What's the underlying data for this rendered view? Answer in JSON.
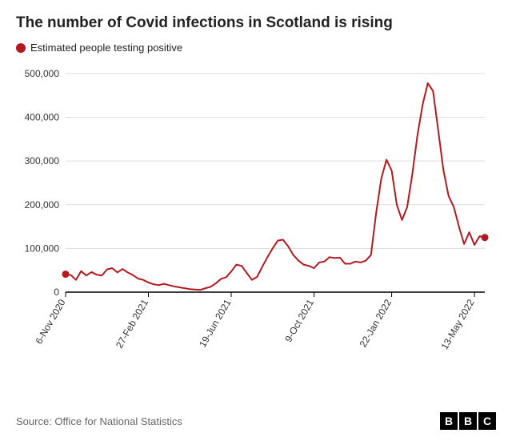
{
  "title": "The number of Covid infections in Scotland is rising",
  "title_fontsize": 19,
  "legend": {
    "label": "Estimated people testing positive",
    "dot_color": "#b3191e",
    "fontsize": 13
  },
  "chart": {
    "type": "line",
    "background_color": "#ffffff",
    "line_color": "#b3191e",
    "line_width": 2,
    "axis_color": "#000000",
    "grid_color": "#dddddd",
    "grid": true,
    "tick_label_color": "#333333",
    "tick_fontsize": 12,
    "endpoint_marker_radius": 4.5,
    "endpoint_marker_color": "#b3191e",
    "ylim": [
      0,
      520000
    ],
    "ytick_values": [
      0,
      100000,
      200000,
      300000,
      400000,
      500000
    ],
    "ytick_labels": [
      "0",
      "100,000",
      "200,000",
      "300,000",
      "400,000",
      "500,000"
    ],
    "xtick_labels": [
      "6-Nov 2020",
      "27-Feb 2021",
      "19-Jun 2021",
      "9-Oct 2021",
      "22-Jan 2022",
      "13-May 2022"
    ],
    "xtick_indices": [
      0,
      16,
      32,
      48,
      63,
      79
    ],
    "values": [
      41000,
      39000,
      28000,
      48000,
      38000,
      46000,
      40000,
      38000,
      52000,
      55000,
      45000,
      53000,
      45000,
      39000,
      31000,
      28000,
      22000,
      18000,
      16000,
      19000,
      16000,
      13000,
      11000,
      9000,
      7000,
      6000,
      5000,
      9000,
      12000,
      20000,
      30000,
      34000,
      47000,
      63000,
      60000,
      44000,
      28000,
      35000,
      58000,
      80000,
      100000,
      118000,
      120000,
      105000,
      85000,
      72000,
      63000,
      60000,
      55000,
      68000,
      70000,
      80000,
      78000,
      79000,
      65000,
      65000,
      70000,
      68000,
      72000,
      85000,
      180000,
      260000,
      303000,
      278000,
      200000,
      165000,
      195000,
      270000,
      360000,
      430000,
      478000,
      460000,
      370000,
      280000,
      220000,
      195000,
      150000,
      110000,
      137000,
      108000,
      128000,
      125000
    ]
  },
  "source": "Source: Office for National Statistics",
  "source_fontsize": 13,
  "logo": {
    "b1": "B",
    "b2": "B",
    "c": "C"
  }
}
